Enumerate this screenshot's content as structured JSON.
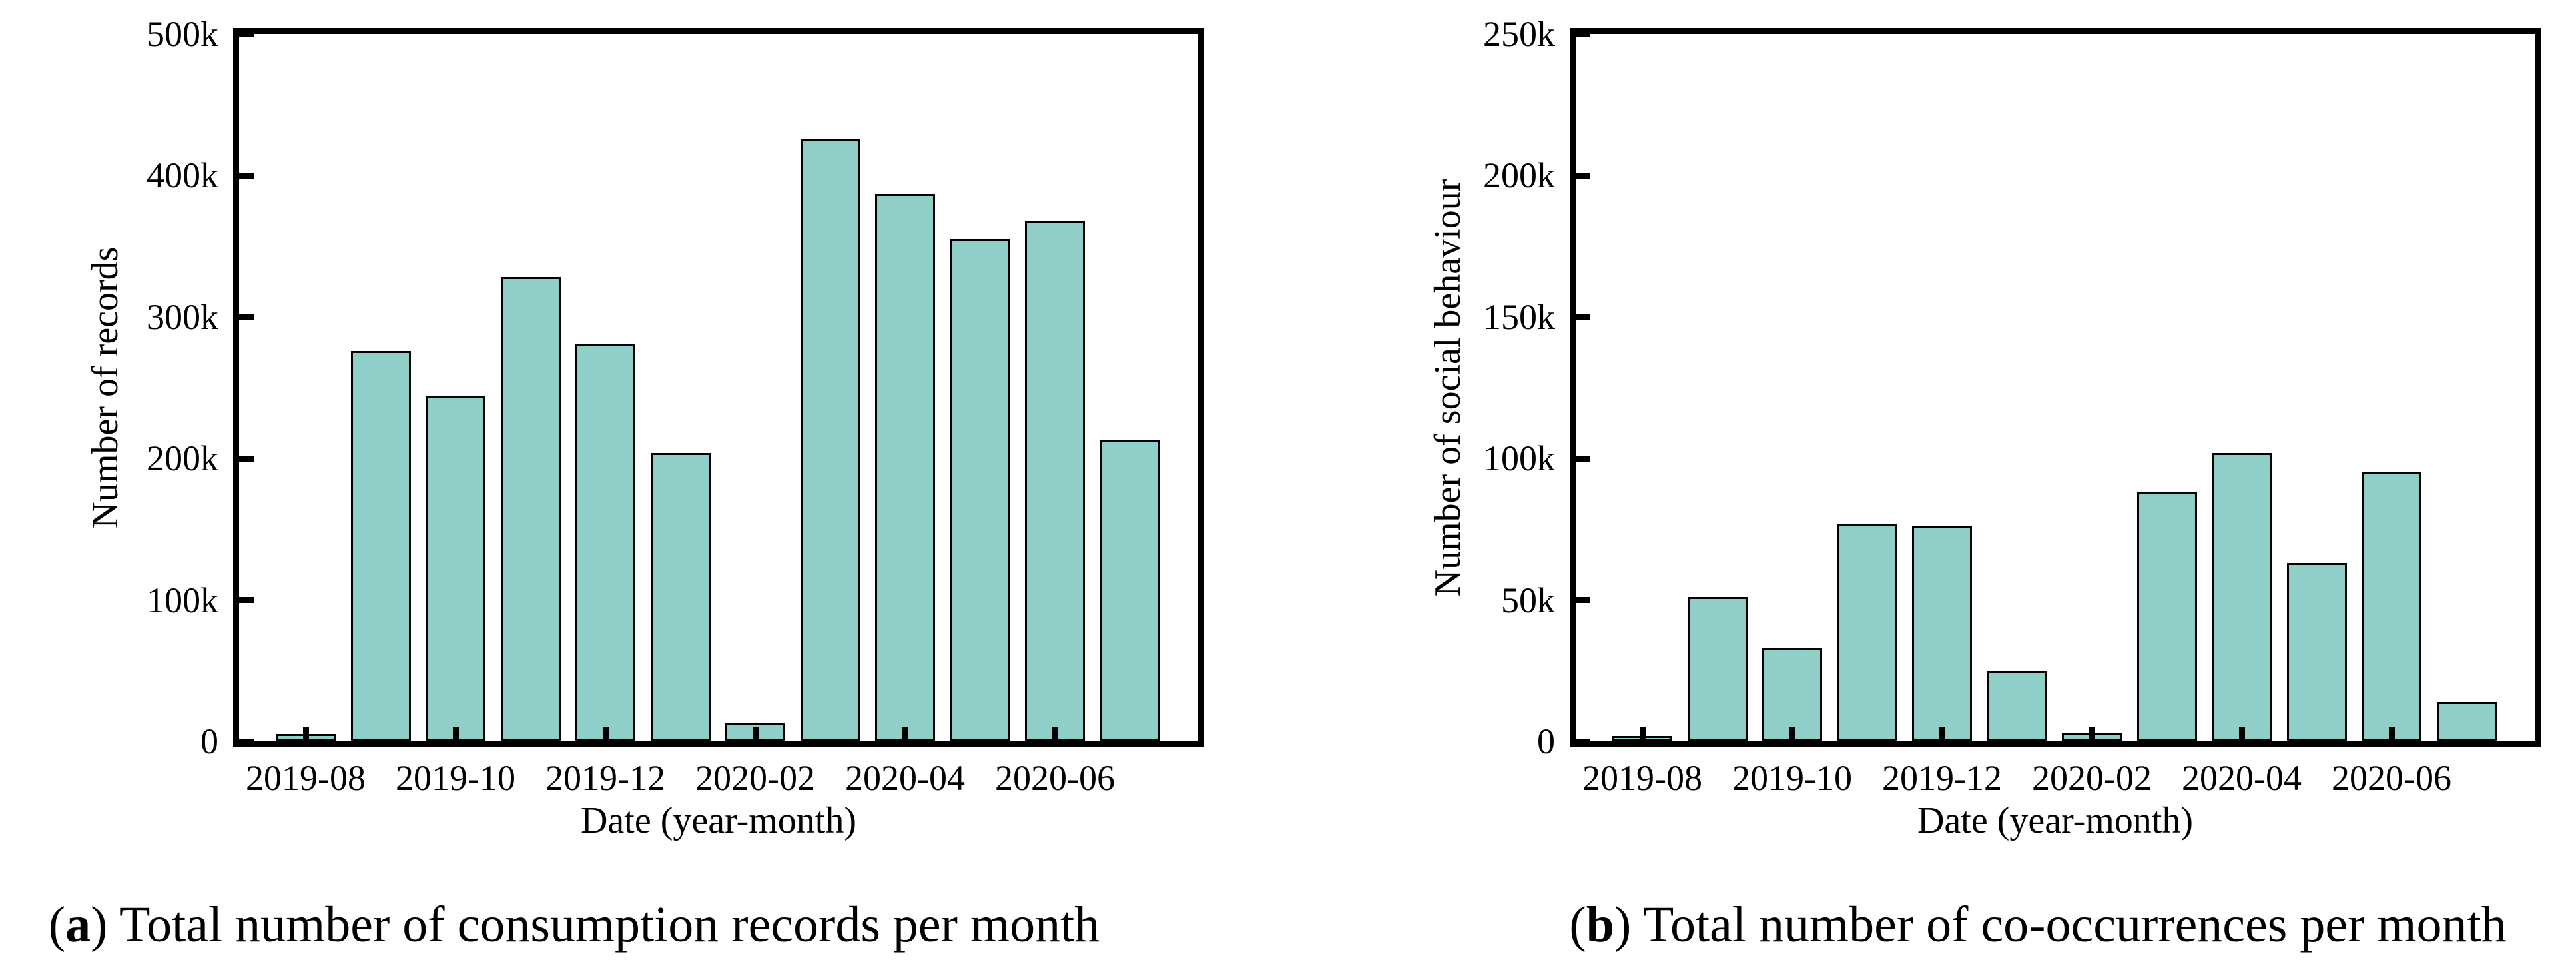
{
  "figure_background": "#ffffff",
  "axis_color": "#000000",
  "chart_data": [
    {
      "type": "bar",
      "panel": "a",
      "caption_open": "(",
      "caption_letter": "a",
      "caption_close": ")",
      "caption_text": " Total number of consumption records per month",
      "xlabel": "Date (year-month)",
      "ylabel": "Number of records",
      "unit": "records (thousands)",
      "categories": [
        "2019-08",
        "2019-09",
        "2019-10",
        "2019-11",
        "2019-12",
        "2020-01",
        "2020-02",
        "2020-03",
        "2020-04",
        "2020-05",
        "2020-06",
        "2020-07"
      ],
      "values_thousands": [
        5,
        276,
        244,
        328,
        281,
        204,
        13,
        426,
        387,
        355,
        368,
        213
      ],
      "ylim_thousands": [
        0,
        500
      ],
      "ytick_step_thousands": 100,
      "ytick_labels": [
        "0",
        "100k",
        "200k",
        "300k",
        "400k",
        "500k"
      ],
      "xtick_labels": [
        "2019-08",
        "2019-10",
        "2019-12",
        "2020-02",
        "2020-04",
        "2020-06"
      ],
      "xtick_indices": [
        0,
        2,
        4,
        6,
        8,
        10
      ],
      "legend": "none",
      "grid": "off",
      "bar_color": "#8FCFC8",
      "bar_edge_color": "#000000"
    },
    {
      "type": "bar",
      "panel": "b",
      "caption_open": "(",
      "caption_letter": "b",
      "caption_close": ")",
      "caption_text": " Total number of co-occurrences per month",
      "xlabel": "Date (year-month)",
      "ylabel": "Number of social behaviour",
      "unit": "co-occurrences (thousands)",
      "categories": [
        "2019-08",
        "2019-09",
        "2019-10",
        "2019-11",
        "2019-12",
        "2020-01",
        "2020-02",
        "2020-03",
        "2020-04",
        "2020-05",
        "2020-06",
        "2020-07"
      ],
      "values_thousands": [
        2,
        51,
        33,
        77,
        76,
        25,
        3,
        88,
        102,
        63,
        95,
        14
      ],
      "ylim_thousands": [
        0,
        250
      ],
      "ytick_step_thousands": 50,
      "ytick_labels": [
        "0",
        "50k",
        "100k",
        "150k",
        "200k",
        "250k"
      ],
      "xtick_labels": [
        "2019-08",
        "2019-10",
        "2019-12",
        "2020-02",
        "2020-04",
        "2020-06"
      ],
      "xtick_indices": [
        0,
        2,
        4,
        6,
        8,
        10
      ],
      "legend": "none",
      "grid": "off",
      "bar_color": "#8FCFC8",
      "bar_edge_color": "#000000"
    }
  ]
}
